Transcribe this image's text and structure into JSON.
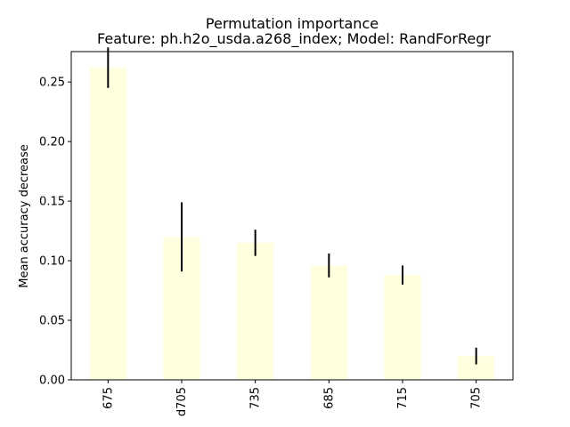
{
  "chart_data": {
    "type": "bar",
    "title": "Permutation importance",
    "subtitle": "Feature: ph.h2o_usda.a268_index; Model: RandForRegr",
    "xlabel": "",
    "ylabel": "Mean accuracy decrease",
    "categories": [
      "675",
      "d705",
      "735",
      "685",
      "715",
      "705"
    ],
    "values": [
      0.262,
      0.12,
      0.115,
      0.096,
      0.088,
      0.02
    ],
    "error": [
      0.017,
      0.029,
      0.011,
      0.01,
      0.008,
      0.007
    ],
    "ylim": [
      0,
      0.2755
    ],
    "yticks": [
      "0.00",
      "0.05",
      "0.10",
      "0.15",
      "0.20",
      "0.25"
    ],
    "ytick_values": [
      0,
      0.05,
      0.1,
      0.15,
      0.2,
      0.25
    ],
    "grid": false,
    "legend": "none",
    "colors": {
      "bar": "#ffffe0",
      "error_bar": "#000000",
      "axes": "#000000"
    }
  }
}
